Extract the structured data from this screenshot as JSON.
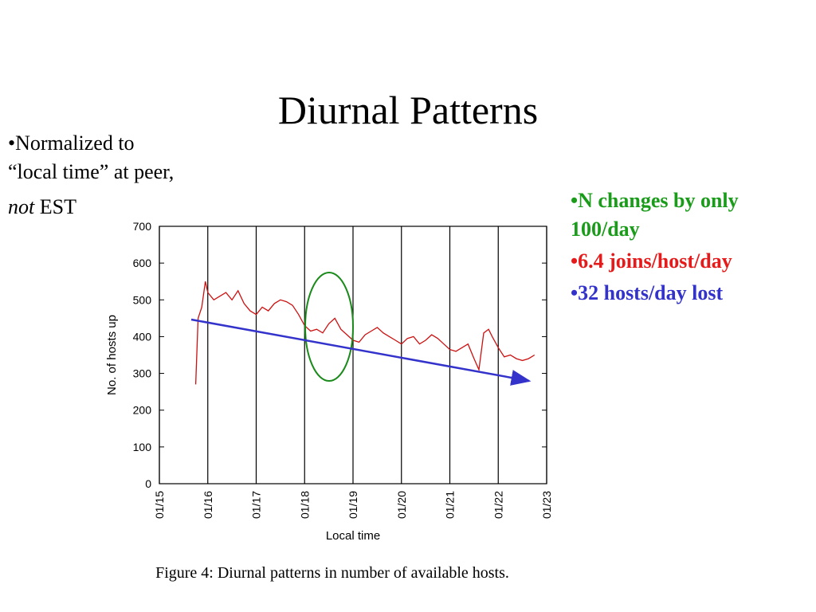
{
  "slide": {
    "title": "Diurnal Patterns",
    "left_note": [
      "•Normalized to",
      "“local time” at peer,",
      "not",
      "EST"
    ],
    "right_notes": [
      {
        "lines": [
          "•N changes by only",
          "100/day"
        ],
        "color": "#1a9c1a"
      },
      {
        "lines": [
          "•6.4 joins/host/day"
        ],
        "color": "#e61a1a"
      },
      {
        "lines": [
          "•32 hosts/day lost"
        ],
        "color": "#3333cc"
      }
    ],
    "caption": "Figure 4: Diurnal patterns in number of available hosts."
  },
  "chart_data": {
    "type": "line",
    "xlabel": "Local time",
    "ylabel": "No. of hosts up",
    "color": "#cc1111",
    "xlim": [
      15,
      23
    ],
    "xticks": [
      {
        "value": 15,
        "label": "01/15"
      },
      {
        "value": 16,
        "label": "01/16"
      },
      {
        "value": 17,
        "label": "01/17"
      },
      {
        "value": 18,
        "label": "01/18"
      },
      {
        "value": 19,
        "label": "01/19"
      },
      {
        "value": 20,
        "label": "01/20"
      },
      {
        "value": 21,
        "label": "01/21"
      },
      {
        "value": 22,
        "label": "01/22"
      },
      {
        "value": 23,
        "label": "01/23"
      }
    ],
    "ylim": [
      0,
      700
    ],
    "yticks": [
      0,
      100,
      200,
      300,
      400,
      500,
      600,
      700
    ],
    "xgrid": true,
    "x": [
      15.75,
      15.8,
      15.875,
      15.95,
      16.0,
      16.125,
      16.25,
      16.375,
      16.5,
      16.625,
      16.75,
      16.875,
      17.0,
      17.125,
      17.25,
      17.375,
      17.5,
      17.625,
      17.75,
      17.875,
      18.0,
      18.125,
      18.25,
      18.375,
      18.5,
      18.625,
      18.75,
      18.875,
      19.0,
      19.125,
      19.25,
      19.375,
      19.5,
      19.625,
      19.75,
      19.875,
      20.0,
      20.125,
      20.25,
      20.375,
      20.5,
      20.625,
      20.75,
      20.875,
      21.0,
      21.125,
      21.25,
      21.375,
      21.5,
      21.6,
      21.7,
      21.8,
      21.875,
      22.0,
      22.125,
      22.25,
      22.375,
      22.5,
      22.625,
      22.75
    ],
    "values": [
      270,
      450,
      480,
      550,
      520,
      500,
      510,
      520,
      500,
      525,
      490,
      470,
      460,
      480,
      470,
      490,
      500,
      495,
      485,
      460,
      430,
      415,
      420,
      410,
      435,
      450,
      420,
      405,
      390,
      385,
      405,
      415,
      425,
      410,
      400,
      390,
      380,
      395,
      400,
      380,
      390,
      405,
      395,
      380,
      365,
      360,
      370,
      380,
      340,
      310,
      410,
      420,
      400,
      370,
      345,
      350,
      340,
      335,
      340,
      350
    ]
  }
}
